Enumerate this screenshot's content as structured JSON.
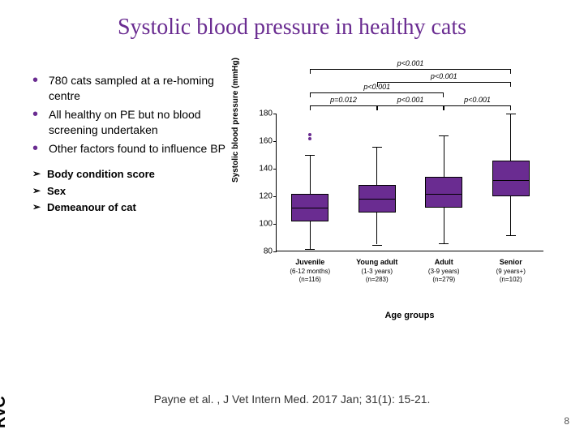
{
  "title": "Systolic blood pressure in healthy cats",
  "bullets": [
    "780 cats sampled at a re-homing centre",
    "All healthy on PE but no blood screening undertaken",
    "Other factors found to influence BP"
  ],
  "arrows": [
    "Body condition score",
    "Sex",
    "Demeanour of cat"
  ],
  "chart": {
    "type": "boxplot",
    "ylabel": "Systolic blood pressure (mmHg)",
    "xlabel": "Age groups",
    "ylim": [
      80,
      180
    ],
    "yticks": [
      80,
      100,
      120,
      140,
      160,
      180
    ],
    "categories": [
      {
        "name": "Juvenile",
        "sub1": "(6-12 months)",
        "sub2": "(n=116)"
      },
      {
        "name": "Young adult",
        "sub1": "(1-3 years)",
        "sub2": "(n=283)"
      },
      {
        "name": "Adult",
        "sub1": "(3-9 years)",
        "sub2": "(n=279)"
      },
      {
        "name": "Senior",
        "sub1": "(9 years+)",
        "sub2": "(n=102)"
      }
    ],
    "boxes": [
      {
        "q1": 102,
        "median": 112,
        "q3": 122,
        "whisker_low": 82,
        "whisker_high": 150,
        "outliers": [
          162,
          165
        ]
      },
      {
        "q1": 108,
        "median": 118,
        "q3": 128,
        "whisker_low": 85,
        "whisker_high": 156,
        "outliers": []
      },
      {
        "q1": 112,
        "median": 122,
        "q3": 134,
        "whisker_low": 86,
        "whisker_high": 164,
        "outliers": []
      },
      {
        "q1": 120,
        "median": 132,
        "q3": 146,
        "whisker_low": 92,
        "whisker_high": 180,
        "outliers": []
      }
    ],
    "significance": [
      {
        "from": 0,
        "to": 1,
        "label": "p=0.012",
        "level": 0
      },
      {
        "from": 1,
        "to": 2,
        "label": "p<0.001",
        "level": 0
      },
      {
        "from": 2,
        "to": 3,
        "label": "p<0.001",
        "level": 0
      },
      {
        "from": 0,
        "to": 2,
        "label": "p<0.001",
        "level": 1
      },
      {
        "from": 1,
        "to": 3,
        "label": "p<0.001",
        "level": 1.8
      },
      {
        "from": 0,
        "to": 3,
        "label": "p<0.001",
        "level": 2.8
      }
    ],
    "box_color": "#6a2c91",
    "background_color": "#ffffff"
  },
  "citation": "Payne et al. , J Vet Intern Med. 2017 Jan; 31(1): 15-21.",
  "logo": "RVC",
  "page_number": "8"
}
